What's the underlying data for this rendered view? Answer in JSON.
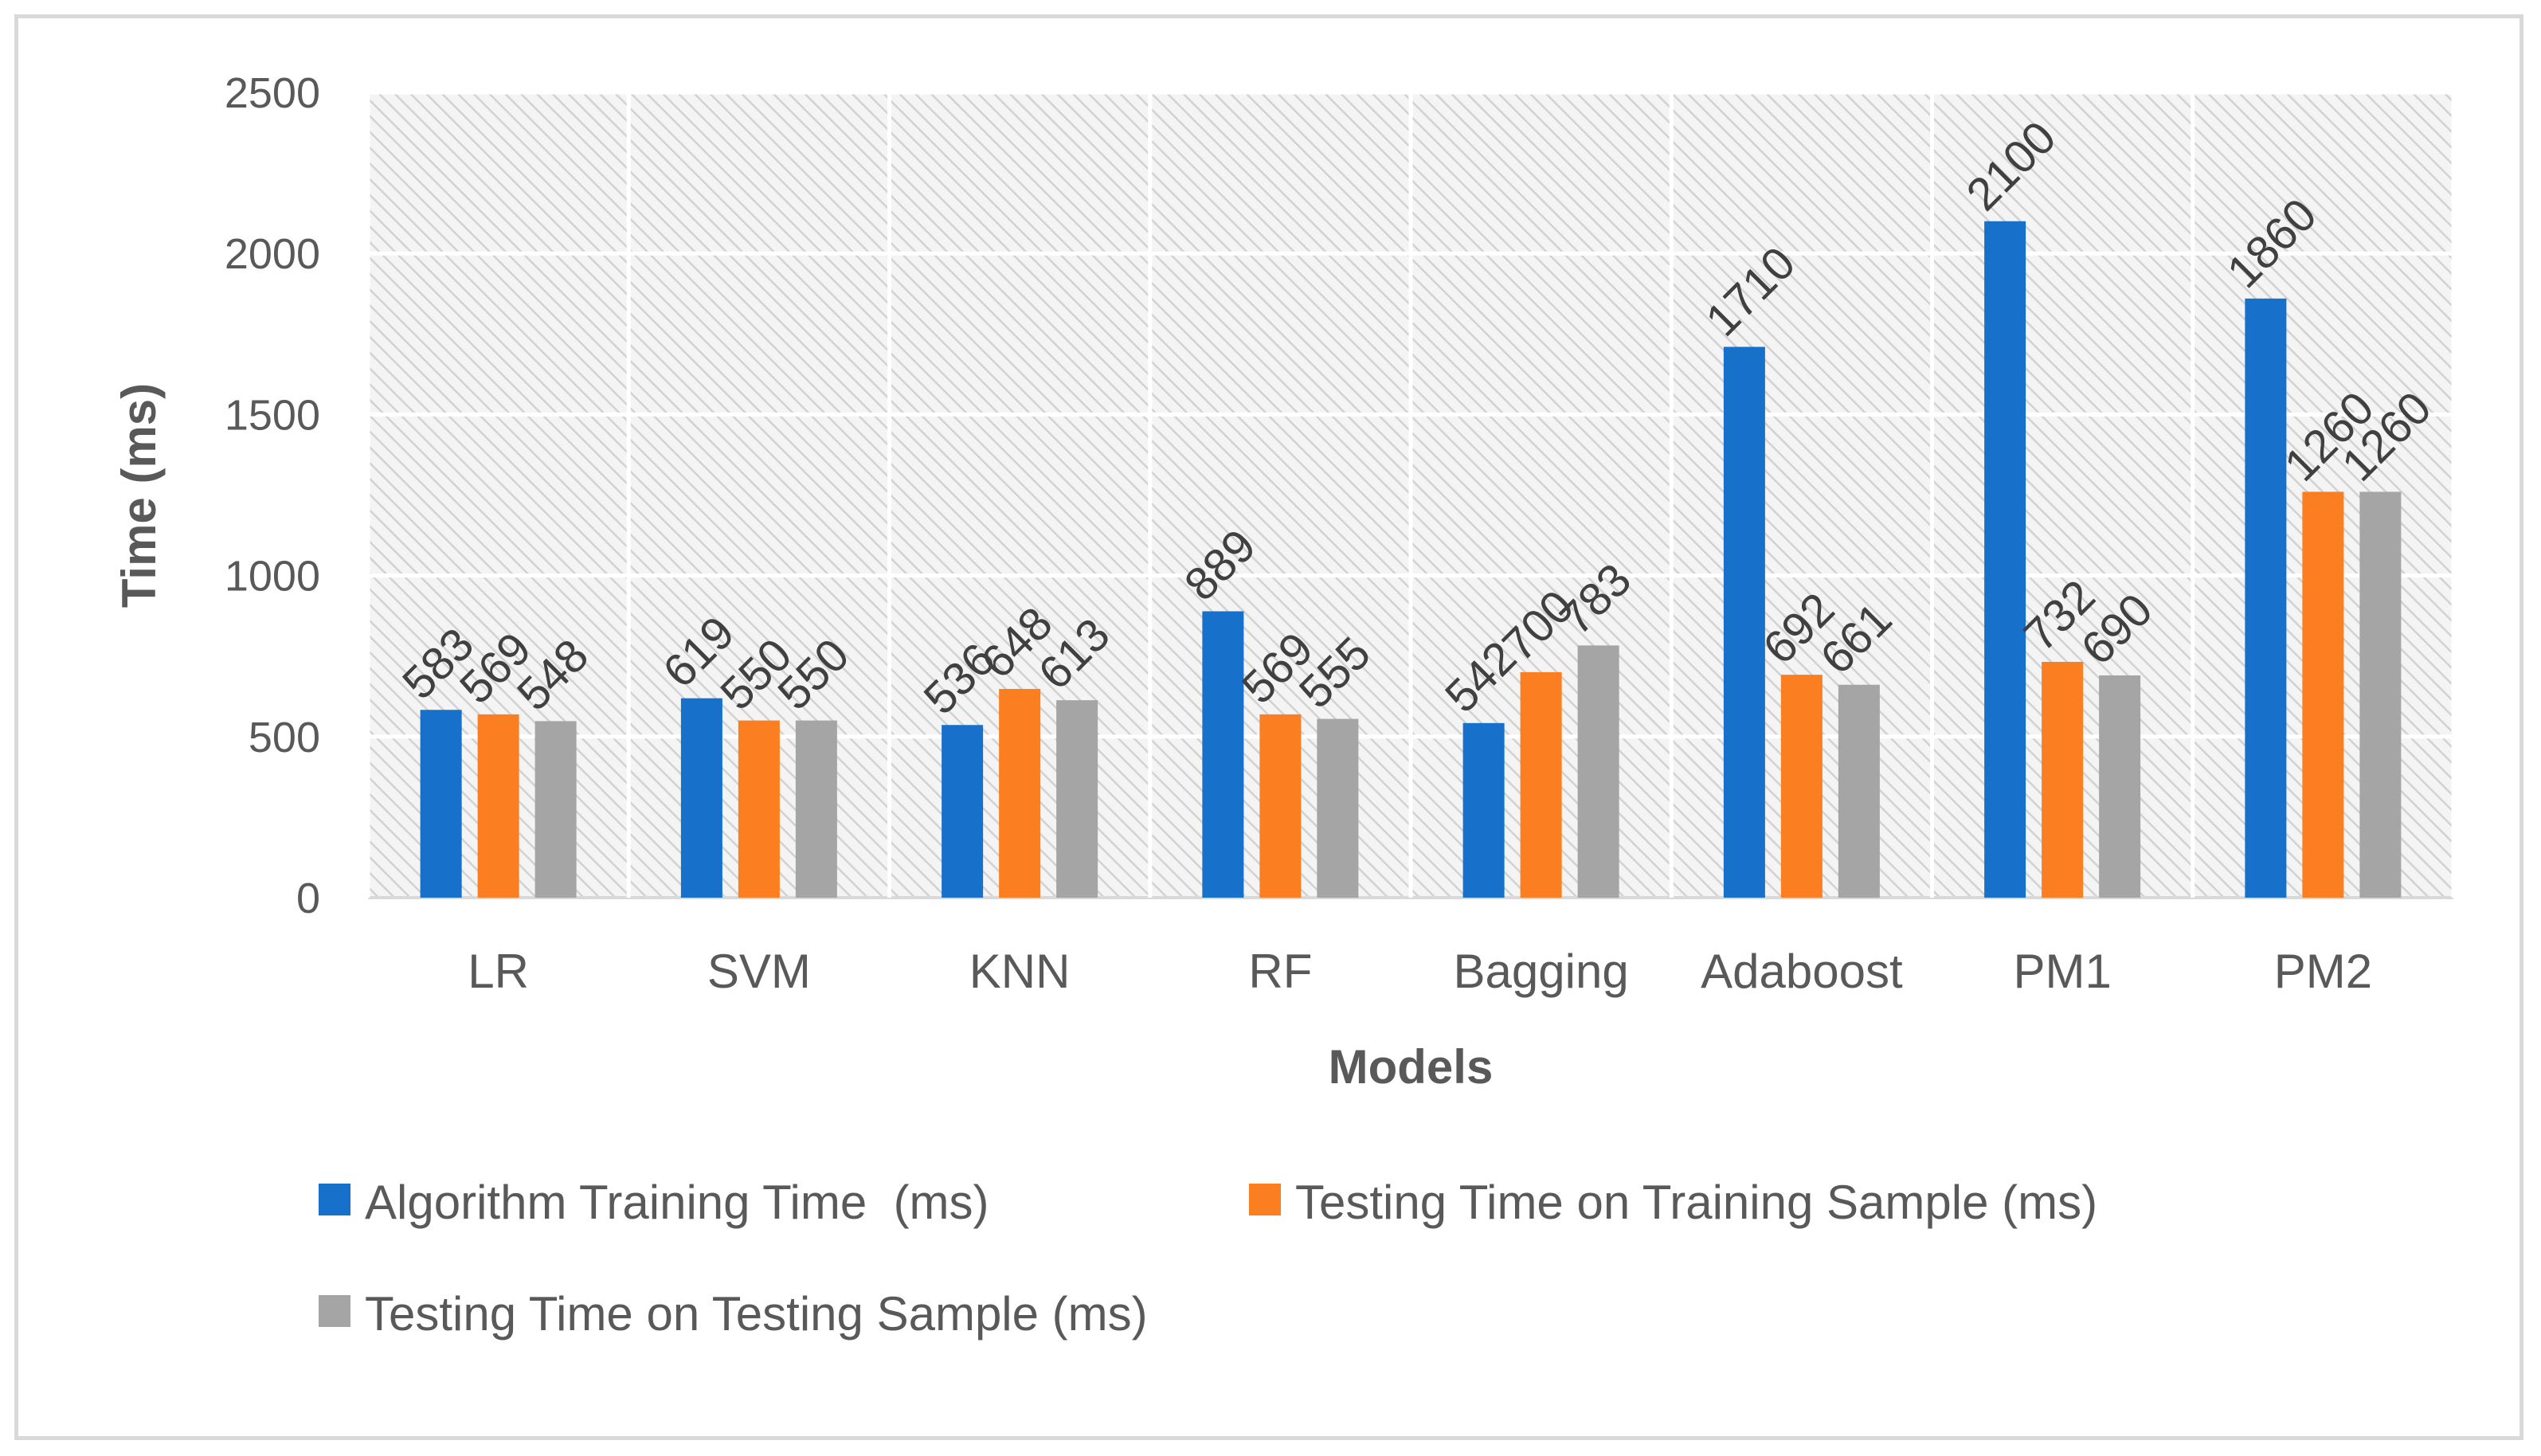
{
  "chart_data": {
    "type": "bar",
    "title": "",
    "xlabel": "Models",
    "ylabel": "Time (ms)",
    "ylim": [
      0,
      2500
    ],
    "yticks": [
      0,
      500,
      1000,
      1500,
      2000,
      2500
    ],
    "grid": true,
    "legend_position": "bottom",
    "categories": [
      "LR",
      "SVM",
      "KNN",
      "RF",
      "Bagging",
      "Adaboost",
      "PM1",
      "PM2"
    ],
    "series": [
      {
        "name": "Algorithm Training Time  (ms)",
        "color": "#1770c9",
        "values": [
          583,
          619,
          536,
          889,
          542,
          1710,
          2100,
          1860
        ]
      },
      {
        "name": "Testing Time on Training Sample (ms)",
        "color": "#fb7f20",
        "values": [
          569,
          550,
          648,
          569,
          700,
          692,
          732,
          1260
        ]
      },
      {
        "name": "Testing Time on Testing Sample (ms)",
        "color": "#a5a5a5",
        "values": [
          548,
          550,
          613,
          555,
          783,
          661,
          690,
          1260
        ]
      }
    ]
  }
}
